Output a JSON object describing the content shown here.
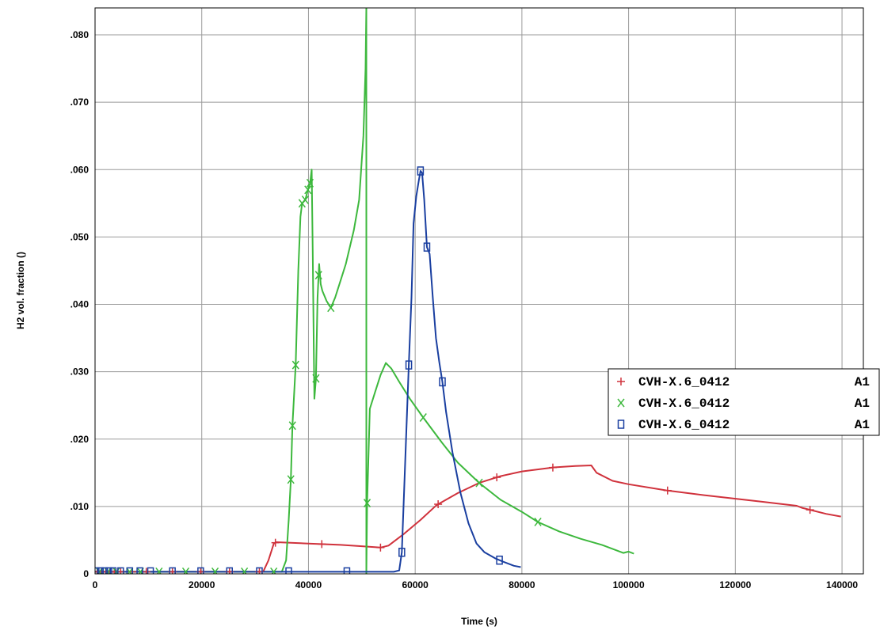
{
  "chart_data": {
    "type": "line",
    "xlabel": "Time (s)",
    "ylabel": "H2 vol. fraction   ()",
    "xlim": [
      0,
      144000
    ],
    "ylim": [
      0,
      0.084
    ],
    "x_ticks": [
      {
        "value": 0,
        "label": "0"
      },
      {
        "value": 20000,
        "label": "20000"
      },
      {
        "value": 40000,
        "label": "40000"
      },
      {
        "value": 60000,
        "label": "60000"
      },
      {
        "value": 80000,
        "label": "80000"
      },
      {
        "value": 100000,
        "label": "100000"
      },
      {
        "value": 120000,
        "label": "120000"
      },
      {
        "value": 140000,
        "label": "140000"
      }
    ],
    "y_ticks": [
      {
        "value": 0,
        "label": "0"
      },
      {
        "value": 0.01,
        "label": ".010"
      },
      {
        "value": 0.02,
        "label": ".020"
      },
      {
        "value": 0.03,
        "label": ".030"
      },
      {
        "value": 0.04,
        "label": ".040"
      },
      {
        "value": 0.05,
        "label": ".050"
      },
      {
        "value": 0.06,
        "label": ".060"
      },
      {
        "value": 0.07,
        "label": ".070"
      },
      {
        "value": 0.08,
        "label": ".080"
      }
    ],
    "grid": true,
    "legend_position": "right",
    "series": [
      {
        "name": "CVH-X.6_0412",
        "tag": "A1",
        "color": "#d0323c",
        "marker": "plus",
        "points": [
          [
            0,
            0.0003
          ],
          [
            31500,
            0.0003
          ],
          [
            32500,
            0.002
          ],
          [
            33500,
            0.0045
          ],
          [
            34000,
            0.0047
          ],
          [
            40000,
            0.0045
          ],
          [
            46000,
            0.0043
          ],
          [
            50000,
            0.0041
          ],
          [
            53500,
            0.0039
          ],
          [
            55000,
            0.0042
          ],
          [
            58000,
            0.006
          ],
          [
            61000,
            0.008
          ],
          [
            64000,
            0.0102
          ],
          [
            68000,
            0.012
          ],
          [
            72000,
            0.0135
          ],
          [
            76000,
            0.0145
          ],
          [
            80000,
            0.0152
          ],
          [
            86000,
            0.0158
          ],
          [
            90000,
            0.016
          ],
          [
            93000,
            0.0161
          ],
          [
            94000,
            0.015
          ],
          [
            97000,
            0.0138
          ],
          [
            100000,
            0.0133
          ],
          [
            107000,
            0.0124
          ],
          [
            115000,
            0.0116
          ],
          [
            125000,
            0.0107
          ],
          [
            131500,
            0.0101
          ],
          [
            132500,
            0.0098
          ],
          [
            134000,
            0.0095
          ],
          [
            137000,
            0.0089
          ],
          [
            139800,
            0.0085
          ]
        ],
        "marker_x": [
          400,
          1200,
          2000,
          2800,
          3600,
          4800,
          7000,
          9600,
          14500,
          19800,
          25200,
          30800,
          33800,
          42500,
          53500,
          64300,
          75300,
          85800,
          107300,
          134000
        ]
      },
      {
        "name": "CVH-X.6_0412",
        "tag": "A1",
        "color": "#3db83d",
        "marker": "x",
        "points": [
          [
            0,
            0.0003
          ],
          [
            35000,
            0.0003
          ],
          [
            35800,
            0.002
          ],
          [
            36300,
            0.008
          ],
          [
            36700,
            0.014
          ],
          [
            37000,
            0.022
          ],
          [
            37600,
            0.031
          ],
          [
            38100,
            0.045
          ],
          [
            38500,
            0.053
          ],
          [
            38800,
            0.055
          ],
          [
            39400,
            0.0555
          ],
          [
            39900,
            0.057
          ],
          [
            40300,
            0.058
          ],
          [
            40600,
            0.06
          ],
          [
            40800,
            0.048
          ],
          [
            41000,
            0.033
          ],
          [
            41100,
            0.026
          ],
          [
            41400,
            0.029
          ],
          [
            41700,
            0.041
          ],
          [
            42000,
            0.046
          ],
          [
            42300,
            0.043
          ],
          [
            42600,
            0.042
          ],
          [
            43400,
            0.0405
          ],
          [
            44200,
            0.0395
          ],
          [
            45000,
            0.041
          ],
          [
            46000,
            0.0435
          ],
          [
            47000,
            0.046
          ],
          [
            48500,
            0.051
          ],
          [
            49500,
            0.0555
          ],
          [
            50300,
            0.065
          ],
          [
            50700,
            0.075
          ],
          [
            50850,
            0.084
          ],
          [
            50850,
            0
          ],
          [
            51000,
            0.0105
          ],
          [
            51500,
            0.0245
          ],
          [
            52500,
            0.027
          ],
          [
            53500,
            0.0295
          ],
          [
            54500,
            0.0313
          ],
          [
            55500,
            0.0305
          ],
          [
            57000,
            0.0285
          ],
          [
            59000,
            0.026
          ],
          [
            61500,
            0.0232
          ],
          [
            65000,
            0.0195
          ],
          [
            68000,
            0.0165
          ],
          [
            72000,
            0.0135
          ],
          [
            76000,
            0.011
          ],
          [
            80000,
            0.0092
          ],
          [
            83000,
            0.0077
          ],
          [
            87000,
            0.0063
          ],
          [
            91000,
            0.0052
          ],
          [
            95000,
            0.0043
          ],
          [
            99000,
            0.0031
          ],
          [
            100000,
            0.0033
          ],
          [
            101000,
            0.003
          ]
        ],
        "marker_x": [
          800,
          2400,
          4000,
          6500,
          8500,
          12000,
          17000,
          22500,
          28000,
          33500,
          36700,
          37000,
          37600,
          38800,
          39400,
          39900,
          40300,
          41400,
          41900,
          44200,
          51000,
          61500,
          72000,
          83000
        ]
      },
      {
        "name": "CVH-X.6_0412",
        "tag": "A1",
        "color": "#1a3fa0",
        "marker": "square",
        "points": [
          [
            0,
            0.0003
          ],
          [
            56000,
            0.0003
          ],
          [
            57000,
            0.0005
          ],
          [
            57500,
            0.0032
          ],
          [
            58200,
            0.018
          ],
          [
            58800,
            0.031
          ],
          [
            59300,
            0.041
          ],
          [
            59700,
            0.052
          ],
          [
            60200,
            0.056
          ],
          [
            60700,
            0.0585
          ],
          [
            61000,
            0.0598
          ],
          [
            61300,
            0.0595
          ],
          [
            61700,
            0.0555
          ],
          [
            62200,
            0.0485
          ],
          [
            62700,
            0.0475
          ],
          [
            63300,
            0.041
          ],
          [
            63900,
            0.035
          ],
          [
            64500,
            0.0315
          ],
          [
            65100,
            0.0285
          ],
          [
            65800,
            0.024
          ],
          [
            67000,
            0.018
          ],
          [
            68500,
            0.012
          ],
          [
            70000,
            0.0075
          ],
          [
            71500,
            0.0045
          ],
          [
            73000,
            0.0032
          ],
          [
            75000,
            0.0023
          ],
          [
            76500,
            0.0018
          ],
          [
            78500,
            0.0012
          ],
          [
            79800,
            0.001
          ]
        ],
        "marker_x": [
          200,
          1000,
          1800,
          2600,
          3400,
          4800,
          6500,
          8400,
          10400,
          14500,
          19800,
          25200,
          30800,
          36300,
          47200,
          57500,
          58800,
          61000,
          62200,
          65100,
          75800
        ]
      }
    ]
  }
}
